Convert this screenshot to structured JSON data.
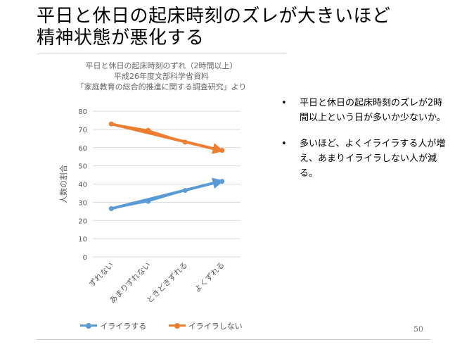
{
  "slide": {
    "title_line1": "平日と休日の起床時刻のズレが大きいほど",
    "title_line2": "精神状態が悪化する",
    "page_number": "50"
  },
  "bullets": [
    "平日と休日の起床時刻のズレが2時間以上という日が多いか少ないか。",
    "多いほど、よくイライラする人が増え、あまりイライラしない人が減る。"
  ],
  "bullet_marker": "•",
  "chart_data": {
    "type": "line",
    "title_lines": [
      "平日と休日の起床時刻のずれ（2時間以上）",
      "平成26年度文部科学省資料",
      "「家庭教育の総合的推進に関する調査研究」より"
    ],
    "categories": [
      "ずれない",
      "あまりずれない",
      "ときどきずれる",
      "よくずれる"
    ],
    "ylabel": "人数の割合",
    "ylim": [
      0,
      80
    ],
    "yticks": [
      0,
      10,
      20,
      30,
      40,
      50,
      60,
      70,
      80
    ],
    "grid": true,
    "legend_position": "bottom",
    "series": [
      {
        "name": "イライラする",
        "color": "#5B9BD5",
        "values": [
          26.5,
          30.5,
          36.5,
          41.5
        ]
      },
      {
        "name": "イライラしない",
        "color": "#ED7D31",
        "values": [
          73,
          69.5,
          63,
          58.5
        ]
      }
    ],
    "annotations": "trend arrows overlaid on each series"
  }
}
